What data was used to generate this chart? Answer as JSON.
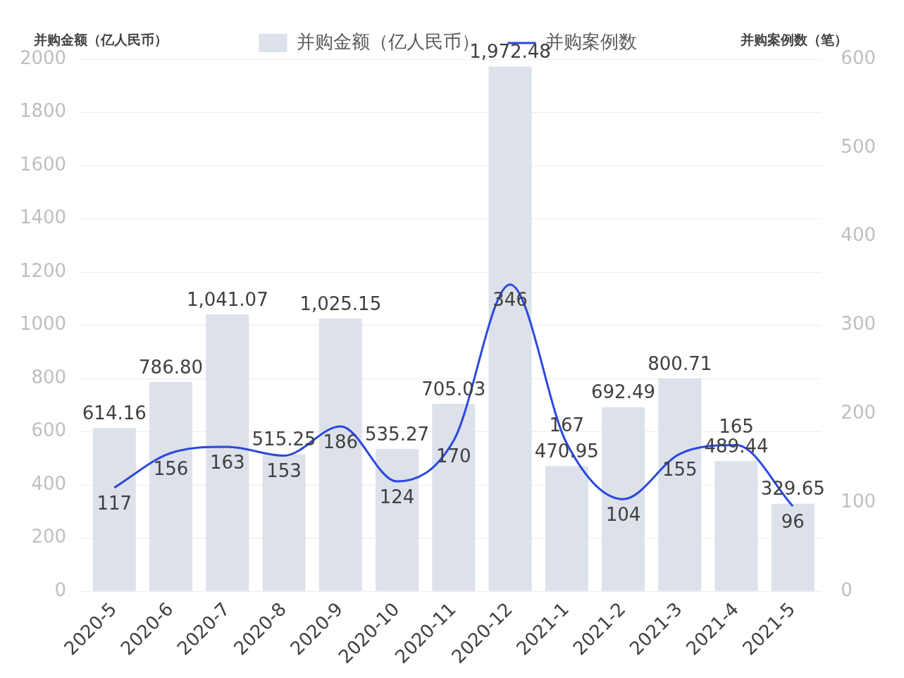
{
  "chart_data": {
    "type": "bar",
    "ylabel": "并购金额（亿人民币）",
    "y2label": "并购案例数（笔）",
    "categories": [
      "2020-5",
      "2020-6",
      "2020-7",
      "2020-8",
      "2020-9",
      "2020-10",
      "2020-11",
      "2020-12",
      "2021-1",
      "2021-2",
      "2021-3",
      "2021-4",
      "2021-5"
    ],
    "series": [
      {
        "name": "并购金额（亿人民币）",
        "color": "#dde1ea",
        "values": [
          614.16,
          786.8,
          1041.07,
          515.25,
          1025.15,
          535.27,
          705.03,
          1972.48,
          470.95,
          692.49,
          800.71,
          489.44,
          329.65
        ],
        "value_labels": [
          "614.16",
          "786.80",
          "1,041.07",
          "515.25",
          "1,025.15",
          "535.27",
          "705.03",
          "1,972.48",
          "470.95",
          "692.49",
          "800.71",
          "489.44",
          "329.65"
        ]
      },
      {
        "name": "并购案例数",
        "type": "line",
        "axis": "y2",
        "color": "#2a48e0",
        "values": [
          117,
          156,
          163,
          153,
          186,
          124,
          170,
          346,
          167,
          104,
          155,
          165,
          96
        ],
        "value_labels": [
          "117",
          "156",
          "163",
          "153",
          "186",
          "124",
          "170",
          "346",
          "167",
          "104",
          "155",
          "165",
          "96"
        ]
      }
    ],
    "ylim": [
      0,
      2000
    ],
    "yticks": [
      0,
      200,
      400,
      600,
      800,
      {
        "value": 1000,
        "label": "1000"
      },
      {
        "value": 1200,
        "label": "1200"
      },
      {
        "value": 1400,
        "label": "1400"
      },
      {
        "value": 1600,
        "label": "1600"
      },
      {
        "value": 1800,
        "label": "1800"
      },
      {
        "value": 2000,
        "label": "2000"
      }
    ],
    "y2lim": [
      0,
      600
    ],
    "y2ticks": [
      0,
      100,
      200,
      300,
      400,
      500,
      600
    ],
    "grid": "y",
    "legend": "top",
    "marker": "none"
  }
}
